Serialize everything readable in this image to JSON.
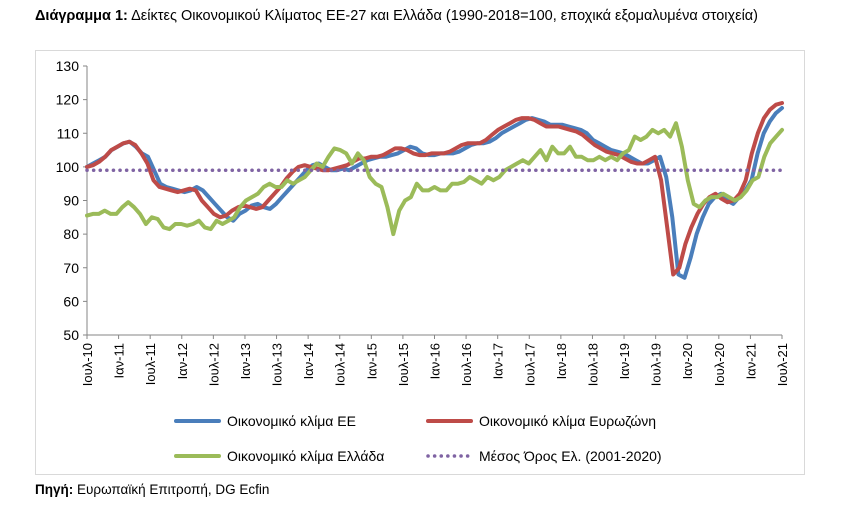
{
  "caption": {
    "label": "Διάγραμμα 1:",
    "text": "Δείκτες Οικονομικού Κλίματος ΕΕ-27 και Ελλάδα (1990-2018=100, εποχικά εξομαλυμένα στοιχεία)"
  },
  "source": {
    "label": "Πηγή:",
    "text": "Ευρωπαϊκή Επιτροπή, DG Ecfin"
  },
  "chart_data": {
    "type": "line",
    "title": "Δείκτες Οικονομικού Κλίματος ΕΕ-27 και Ελλάδα (1990-2018=100, εποχικά εξομαλυμένα στοιχεία)",
    "xlabel": "",
    "ylabel": "",
    "ylim": [
      50,
      130
    ],
    "yticks": [
      50,
      60,
      70,
      80,
      90,
      100,
      110,
      120,
      130
    ],
    "grid": false,
    "legend_position": "bottom",
    "x_range": [
      "Ιουλ-10",
      "Ιουλ-21"
    ],
    "xticks": [
      "Ιουλ-10",
      "Ιαν-11",
      "Ιουλ-11",
      "Ιαν-12",
      "Ιουλ-12",
      "Ιαν-13",
      "Ιουλ-13",
      "Ιαν-14",
      "Ιουλ-14",
      "Ιαν-15",
      "Ιουλ-15",
      "Ιαν-16",
      "Ιουλ-16",
      "Ιαν-17",
      "Ιουλ-17",
      "Ιαν-18",
      "Ιουλ-18",
      "Ιαν-19",
      "Ιουλ-19",
      "Ιαν-20",
      "Ιουλ-20",
      "Ιαν-21",
      "Ιουλ-21"
    ],
    "series": [
      {
        "name": "Οικονομικό κλίμα ΕΕ",
        "color": "#4a7ebb",
        "style": "solid",
        "values": [
          100,
          101,
          102,
          103,
          105,
          106,
          107,
          107.5,
          106,
          104,
          103,
          99,
          95,
          94,
          93.5,
          93,
          92.5,
          93,
          94,
          93,
          91,
          89,
          87,
          85,
          84,
          86,
          87,
          88.5,
          89,
          88,
          87.5,
          89,
          91,
          93,
          95,
          97,
          99,
          100.5,
          101,
          100,
          99,
          99,
          99.5,
          99,
          100,
          101,
          102,
          102.5,
          103,
          103,
          103.5,
          104,
          105,
          106,
          105.5,
          104,
          103.5,
          103.5,
          104,
          104,
          104,
          104.5,
          105.5,
          106.5,
          107,
          107,
          107.5,
          108.5,
          110,
          111,
          112,
          113,
          114,
          114.5,
          114,
          113.5,
          112.5,
          112.5,
          112.5,
          112,
          111.5,
          111,
          110,
          108,
          107,
          106,
          105,
          104.5,
          104,
          103,
          102,
          101,
          101,
          102,
          103,
          97,
          85,
          68,
          67,
          73,
          80,
          85,
          89,
          91,
          92,
          90,
          89,
          91,
          93,
          96,
          104,
          110,
          113.5,
          116,
          117.5
        ]
      },
      {
        "name": "Οικονομικό κλίμα Ευρωζώνη",
        "color": "#be4b48",
        "style": "solid",
        "values": [
          100,
          100.5,
          101.5,
          103,
          105,
          106,
          107,
          107.5,
          106.5,
          104,
          101,
          96,
          94,
          93.5,
          93,
          92.5,
          93,
          93.5,
          93,
          90,
          88,
          86,
          85,
          85.5,
          87,
          88,
          88.5,
          88,
          87.5,
          88,
          90,
          92,
          94,
          96.5,
          98.5,
          100,
          100.5,
          100,
          99.5,
          99,
          99,
          99.5,
          100,
          100.5,
          101.5,
          102.5,
          102.5,
          103,
          103,
          103.5,
          104.5,
          105.5,
          105.5,
          105,
          104,
          103.5,
          103.5,
          104,
          104,
          104,
          104.5,
          105.5,
          106.5,
          107,
          107,
          107,
          108,
          109.5,
          111,
          112,
          113,
          114,
          114.5,
          114.5,
          114,
          113,
          112,
          112,
          112,
          111.5,
          111,
          110.5,
          109.5,
          108,
          106.5,
          105.5,
          104.5,
          104,
          103.5,
          102.5,
          101.5,
          101,
          101,
          102,
          103,
          96,
          82,
          68,
          70,
          77,
          82,
          86,
          89,
          91,
          92,
          90.5,
          89.5,
          90,
          92,
          96,
          104,
          110,
          114.5,
          117,
          118.5,
          119
        ]
      },
      {
        "name": "Οικονομικό κλίμα Ελλάδα",
        "color": "#9bbb59",
        "style": "solid",
        "values": [
          85.5,
          86,
          86,
          87,
          86,
          86,
          88,
          89.5,
          88,
          86,
          83,
          85,
          84.5,
          82,
          81.5,
          83,
          83,
          82.5,
          83,
          84,
          82,
          81.5,
          84,
          83,
          84,
          85,
          88,
          90,
          91,
          92,
          94,
          95,
          94,
          94,
          96,
          95,
          96,
          97,
          99,
          101,
          100,
          103,
          105.5,
          105,
          104,
          101,
          104,
          102,
          97,
          95,
          94,
          88,
          80,
          87,
          90,
          91,
          95,
          93,
          93,
          94,
          93,
          93,
          95,
          95,
          95.5,
          97,
          96,
          95,
          97,
          96,
          97,
          99,
          100,
          101,
          102,
          101,
          103,
          105,
          102,
          106,
          104,
          104,
          106,
          103,
          103,
          102,
          102,
          103,
          102,
          103,
          102,
          104,
          105,
          109,
          108,
          109,
          111,
          110,
          111,
          109,
          113,
          106,
          96,
          89,
          88,
          90,
          91,
          91,
          92,
          91,
          90,
          91,
          93,
          96,
          97,
          103,
          107,
          109,
          111
        ]
      },
      {
        "name": "Μέσος Όρος Ελ. (2001-2020)",
        "color": "#7f63a3",
        "style": "dotted",
        "values": [
          99,
          99
        ]
      }
    ]
  }
}
